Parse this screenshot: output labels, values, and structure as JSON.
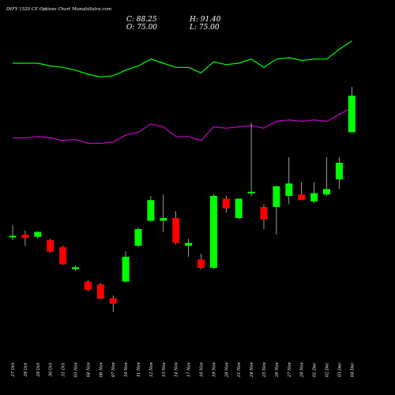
{
  "header": {
    "title": "INFY 1520  CE Options  Chart MunafaSutra.com",
    "close": "C: 88.25",
    "high": "H: 91.40",
    "open": "O: 75.00",
    "low": "L: 75.00"
  },
  "colors": {
    "background": "#000000",
    "up": "#00ff00",
    "down": "#ff0000",
    "line_upper": "#00ff00",
    "line_lower": "#cc00cc",
    "text": "#ffffff"
  },
  "chart_data": {
    "type": "candlestick",
    "categories": [
      "27 Oct",
      "28 Oct",
      "29 Oct",
      "30 Oct",
      "31 Oct",
      "03 Nov",
      "04 Nov",
      "06 Nov",
      "07 Nov",
      "10 Nov",
      "11 Nov",
      "12 Nov",
      "13 Nov",
      "14 Nov",
      "17 Nov",
      "18 Nov",
      "19 Nov",
      "20 Nov",
      "21 Nov",
      "24 Nov",
      "25 Nov",
      "26 Nov",
      "27 Nov",
      "28 Nov",
      "01 Dec",
      "02 Dec",
      "03 Dec",
      "04 Dec"
    ],
    "candles": [
      {
        "o": 37.0,
        "h": 41.5,
        "l": 36.0,
        "c": 37.6
      },
      {
        "o": 38.0,
        "h": 39.5,
        "l": 34.0,
        "c": 36.8
      },
      {
        "o": 37.2,
        "h": 39.3,
        "l": 36.5,
        "c": 39.0
      },
      {
        "o": 36.0,
        "h": 36.5,
        "l": 31.5,
        "c": 31.8
      },
      {
        "o": 33.5,
        "h": 34.0,
        "l": 27.0,
        "c": 27.3
      },
      {
        "o": 25.5,
        "h": 26.8,
        "l": 24.8,
        "c": 26.2
      },
      {
        "o": 21.0,
        "h": 21.5,
        "l": 17.5,
        "c": 18.0
      },
      {
        "o": 20.0,
        "h": 20.5,
        "l": 14.5,
        "c": 14.8
      },
      {
        "o": 15.0,
        "h": 16.0,
        "l": 10.0,
        "c": 13.0
      },
      {
        "o": 21.0,
        "h": 32.0,
        "l": 20.5,
        "c": 30.0
      },
      {
        "o": 34.0,
        "h": 40.5,
        "l": 33.5,
        "c": 40.0
      },
      {
        "o": 43.0,
        "h": 52.0,
        "l": 42.5,
        "c": 50.5
      },
      {
        "o": 43.0,
        "h": 52.5,
        "l": 39.0,
        "c": 44.0
      },
      {
        "o": 44.0,
        "h": 46.5,
        "l": 34.5,
        "c": 35.0
      },
      {
        "o": 34.0,
        "h": 36.5,
        "l": 30.0,
        "c": 35.0
      },
      {
        "o": 29.0,
        "h": 31.0,
        "l": 25.5,
        "c": 26.0
      },
      {
        "o": 26.0,
        "h": 52.5,
        "l": 25.5,
        "c": 52.0
      },
      {
        "o": 51.0,
        "h": 52.0,
        "l": 46.0,
        "c": 47.5
      },
      {
        "o": 44.0,
        "h": 51.0,
        "l": 43.5,
        "c": 51.0
      },
      {
        "o": 53.0,
        "h": 78.5,
        "l": 52.0,
        "c": 53.5
      },
      {
        "o": 48.0,
        "h": 49.0,
        "l": 40.0,
        "c": 43.5
      },
      {
        "o": 48.0,
        "h": 55.5,
        "l": 38.0,
        "c": 55.5
      },
      {
        "o": 52.0,
        "h": 66.0,
        "l": 49.0,
        "c": 56.5
      },
      {
        "o": 52.5,
        "h": 57.0,
        "l": 51.5,
        "c": 50.5
      },
      {
        "o": 50.0,
        "h": 57.0,
        "l": 49.5,
        "c": 53.0
      },
      {
        "o": 52.5,
        "h": 66.0,
        "l": 52.0,
        "c": 54.5
      },
      {
        "o": 58.0,
        "h": 66.0,
        "l": 54.5,
        "c": 64.0
      },
      {
        "o": 75.0,
        "h": 91.4,
        "l": 75.0,
        "c": 88.25
      }
    ],
    "line_upper": [
      100,
      100,
      100,
      99,
      98.5,
      97.5,
      96,
      95,
      95.5,
      97.5,
      99,
      101.5,
      100,
      98.5,
      98.5,
      96.5,
      100.5,
      99.5,
      100,
      101.5,
      98.5,
      101.5,
      102,
      101,
      101.5,
      101.5,
      105,
      108
    ],
    "line_lower": [
      73,
      73,
      73.5,
      73,
      72,
      72.5,
      71,
      71,
      71.5,
      74,
      75,
      78,
      77,
      73.5,
      73.5,
      72,
      77,
      76.5,
      77,
      77.5,
      76.5,
      79,
      79.5,
      79,
      79.5,
      79,
      81.5,
      84
    ],
    "ylim": [
      0,
      120
    ]
  }
}
